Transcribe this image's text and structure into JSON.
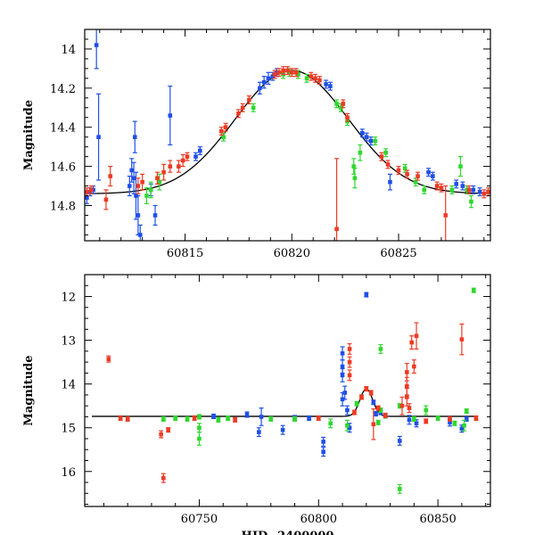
{
  "colors": {
    "blue": "#1f4fe8",
    "green": "#2ed82e",
    "red": "#ec3b25",
    "model": "#000000",
    "frame": "#000000"
  },
  "chart_data": [
    {
      "type": "scatter",
      "panel": "top",
      "title": "",
      "xlabel": "",
      "ylabel": "Magnitude",
      "xlim": [
        60810.3,
        60829.3
      ],
      "ylim": [
        14.98,
        13.9
      ],
      "y_inverted": true,
      "xticks": [
        60815,
        60820,
        60825
      ],
      "xtick_labels": [
        "60815",
        "60820",
        "60825"
      ],
      "yticks": [
        14,
        14.2,
        14.4,
        14.6,
        14.8
      ],
      "ytick_labels": [
        "14",
        "14.2",
        "14.4",
        "14.6",
        "14.8"
      ],
      "model_curve": {
        "t0": 60820.0,
        "base": 14.74,
        "peak": 14.11,
        "tE": 2.65
      },
      "series": [
        {
          "color": "blue",
          "points": [
            [
              60810.4,
              14.76,
              0.03
            ],
            [
              60810.55,
              14.73,
              0.02
            ],
            [
              60810.7,
              14.72,
              0.02
            ],
            [
              60810.85,
              13.98,
              0.12
            ],
            [
              60810.95,
              14.45,
              0.22
            ],
            [
              60812.4,
              14.7,
              0.05
            ],
            [
              60812.5,
              14.62,
              0.06
            ],
            [
              60812.6,
              14.66,
              0.08
            ],
            [
              60812.7,
              14.75,
              0.12
            ],
            [
              60812.8,
              14.85,
              0.1
            ],
            [
              60812.9,
              14.95,
              0.05
            ],
            [
              60812.65,
              14.45,
              0.08
            ],
            [
              60813.4,
              14.72,
              0.03
            ],
            [
              60813.6,
              14.85,
              0.05
            ],
            [
              60814.3,
              14.34,
              0.15
            ],
            [
              60815.5,
              14.55,
              0.02
            ],
            [
              60815.7,
              14.52,
              0.02
            ],
            [
              60818.5,
              14.2,
              0.03
            ],
            [
              60818.7,
              14.17,
              0.03
            ],
            [
              60818.9,
              14.15,
              0.03
            ],
            [
              60819.1,
              14.14,
              0.02
            ],
            [
              60819.3,
              14.12,
              0.02
            ],
            [
              60821.6,
              14.18,
              0.02
            ],
            [
              60821.8,
              14.19,
              0.02
            ],
            [
              60823.3,
              14.43,
              0.02
            ],
            [
              60823.5,
              14.45,
              0.02
            ],
            [
              60823.7,
              14.47,
              0.02
            ],
            [
              60824.6,
              14.68,
              0.04
            ],
            [
              60826.4,
              14.63,
              0.02
            ],
            [
              60826.6,
              14.65,
              0.02
            ],
            [
              60827.7,
              14.69,
              0.02
            ],
            [
              60828.0,
              14.7,
              0.02
            ],
            [
              60828.5,
              14.72,
              0.02
            ],
            [
              60828.8,
              14.73,
              0.02
            ]
          ]
        },
        {
          "color": "green",
          "points": [
            [
              60813.2,
              14.75,
              0.04
            ],
            [
              60813.4,
              14.72,
              0.04
            ],
            [
              60813.8,
              14.68,
              0.04
            ],
            [
              60816.8,
              14.45,
              0.02
            ],
            [
              60818.2,
              14.3,
              0.02
            ],
            [
              60819.6,
              14.13,
              0.02
            ],
            [
              60819.9,
              14.12,
              0.02
            ],
            [
              60820.3,
              14.13,
              0.02
            ],
            [
              60820.7,
              14.15,
              0.02
            ],
            [
              60822.1,
              14.28,
              0.02
            ],
            [
              60822.3,
              14.3,
              0.02
            ],
            [
              60822.6,
              14.37,
              0.02
            ],
            [
              60822.9,
              14.6,
              0.04
            ],
            [
              60822.95,
              14.66,
              0.05
            ],
            [
              60823.2,
              14.53,
              0.04
            ],
            [
              60823.9,
              14.47,
              0.02
            ],
            [
              60824.4,
              14.53,
              0.02
            ],
            [
              60825.3,
              14.61,
              0.02
            ],
            [
              60825.8,
              14.68,
              0.02
            ],
            [
              60826.2,
              14.72,
              0.02
            ],
            [
              60827.5,
              14.72,
              0.02
            ],
            [
              60827.9,
              14.6,
              0.05
            ],
            [
              60828.2,
              14.72,
              0.02
            ],
            [
              60828.4,
              14.78,
              0.03
            ]
          ]
        },
        {
          "color": "red",
          "points": [
            [
              60810.4,
              14.73,
              0.02
            ],
            [
              60810.6,
              14.72,
              0.02
            ],
            [
              60811.3,
              14.77,
              0.05
            ],
            [
              60811.5,
              14.65,
              0.05
            ],
            [
              60812.8,
              14.7,
              0.04
            ],
            [
              60813.0,
              14.68,
              0.04
            ],
            [
              60813.7,
              14.66,
              0.03
            ],
            [
              60814.0,
              14.63,
              0.04
            ],
            [
              60814.3,
              14.6,
              0.03
            ],
            [
              60814.7,
              14.6,
              0.03
            ],
            [
              60814.9,
              14.57,
              0.03
            ],
            [
              60815.1,
              14.55,
              0.02
            ],
            [
              60816.7,
              14.42,
              0.02
            ],
            [
              60816.9,
              14.4,
              0.02
            ],
            [
              60817.5,
              14.33,
              0.02
            ],
            [
              60817.7,
              14.3,
              0.02
            ],
            [
              60818.0,
              14.26,
              0.02
            ],
            [
              60819.2,
              14.13,
              0.02
            ],
            [
              60819.4,
              14.12,
              0.02
            ],
            [
              60819.6,
              14.11,
              0.02
            ],
            [
              60819.8,
              14.11,
              0.02
            ],
            [
              60820.0,
              14.12,
              0.02
            ],
            [
              60820.2,
              14.12,
              0.02
            ],
            [
              60820.9,
              14.14,
              0.02
            ],
            [
              60821.1,
              14.15,
              0.02
            ],
            [
              60821.3,
              14.16,
              0.02
            ],
            [
              60822.4,
              14.28,
              0.02
            ],
            [
              60822.6,
              14.35,
              0.02
            ],
            [
              60822.1,
              14.92,
              0.36
            ],
            [
              60824.2,
              14.55,
              0.02
            ],
            [
              60824.5,
              14.59,
              0.02
            ],
            [
              60825.0,
              14.62,
              0.02
            ],
            [
              60825.4,
              14.64,
              0.02
            ],
            [
              60825.9,
              14.65,
              0.02
            ],
            [
              60826.8,
              14.7,
              0.02
            ],
            [
              60827.0,
              14.71,
              0.02
            ],
            [
              60827.2,
              14.85,
              0.15
            ],
            [
              60828.3,
              14.72,
              0.02
            ],
            [
              60829.0,
              14.74,
              0.02
            ],
            [
              60829.2,
              14.73,
              0.02
            ]
          ]
        }
      ]
    },
    {
      "type": "scatter",
      "panel": "bottom",
      "title": "",
      "xlabel": "HJD−2400000",
      "ylabel": "Magnitude",
      "xlim": [
        60702,
        60872
      ],
      "ylim": [
        16.8,
        11.5
      ],
      "y_inverted": true,
      "xticks": [
        60750,
        60800,
        60850
      ],
      "xtick_labels": [
        "60750",
        "60800",
        "60850"
      ],
      "yticks": [
        12,
        13,
        14,
        15,
        16
      ],
      "ytick_labels": [
        "12",
        "13",
        "14",
        "15",
        "16"
      ],
      "baseline": {
        "x_start": 60705,
        "x_end": 60866,
        "mag": 14.74
      },
      "model_curve": {
        "t0": 60820.0,
        "base": 14.74,
        "peak": 14.11,
        "tE": 2.65
      },
      "series": [
        {
          "color": "blue",
          "points": [
            [
              60756,
              14.74,
              0.05
            ],
            [
              60770,
              14.7,
              0.06
            ],
            [
              60775,
              15.1,
              0.1
            ],
            [
              60776,
              14.75,
              0.2
            ],
            [
              60785,
              15.05,
              0.1
            ],
            [
              60790,
              14.77,
              0.05
            ],
            [
              60796,
              14.78,
              0.05
            ],
            [
              60802,
              15.32,
              0.1
            ],
            [
              60802,
              15.55,
              0.1
            ],
            [
              60810,
              13.3,
              0.15
            ],
            [
              60810,
              13.6,
              0.15
            ],
            [
              60810,
              13.8,
              0.15
            ],
            [
              60810,
              14.35,
              0.15
            ],
            [
              60811,
              14.2,
              0.15
            ],
            [
              60812,
              14.6,
              0.1
            ],
            [
              60813,
              15.0,
              0.1
            ],
            [
              60820,
              11.96,
              0.05
            ],
            [
              60823,
              14.42,
              0.05
            ],
            [
              60824,
              14.68,
              0.05
            ],
            [
              60826,
              14.65,
              0.05
            ],
            [
              60834,
              15.3,
              0.1
            ],
            [
              60838,
              14.82,
              0.1
            ],
            [
              60841,
              14.9,
              0.08
            ],
            [
              60855,
              14.88,
              0.08
            ],
            [
              60860,
              15.02,
              0.08
            ],
            [
              60862,
              14.8,
              0.05
            ]
          ]
        },
        {
          "color": "green",
          "points": [
            [
              60735,
              14.8,
              0.05
            ],
            [
              60740,
              14.78,
              0.05
            ],
            [
              60745,
              14.8,
              0.05
            ],
            [
              60750,
              15.25,
              0.15
            ],
            [
              60750,
              15.0,
              0.1
            ],
            [
              60750,
              14.75,
              0.05
            ],
            [
              60758,
              14.82,
              0.05
            ],
            [
              60762,
              14.78,
              0.05
            ],
            [
              60780,
              14.8,
              0.05
            ],
            [
              60790,
              14.8,
              0.05
            ],
            [
              60805,
              14.9,
              0.1
            ],
            [
              60812,
              14.95,
              0.12
            ],
            [
              60816,
              14.45,
              0.05
            ],
            [
              60818,
              14.3,
              0.05
            ],
            [
              60825,
              14.88,
              0.05
            ],
            [
              60826,
              13.2,
              0.1
            ],
            [
              60826,
              14.6,
              0.05
            ],
            [
              60828,
              14.73,
              0.05
            ],
            [
              60834,
              14.5,
              0.05
            ],
            [
              60834,
              16.4,
              0.1
            ],
            [
              60840,
              14.8,
              0.05
            ],
            [
              60845,
              14.6,
              0.1
            ],
            [
              60850,
              14.78,
              0.05
            ],
            [
              60857,
              14.9,
              0.05
            ],
            [
              60861,
              14.95,
              0.12
            ],
            [
              60862,
              14.62,
              0.05
            ],
            [
              60865,
              11.86,
              0.05
            ]
          ]
        },
        {
          "color": "red",
          "points": [
            [
              60712,
              13.43,
              0.07
            ],
            [
              60717,
              14.78,
              0.05
            ],
            [
              60720,
              14.8,
              0.05
            ],
            [
              60734,
              15.15,
              0.08
            ],
            [
              60735,
              16.15,
              0.1
            ],
            [
              60737,
              15.05,
              0.05
            ],
            [
              60748,
              14.78,
              0.05
            ],
            [
              60765,
              14.82,
              0.05
            ],
            [
              60800,
              14.78,
              0.05
            ],
            [
              60813,
              13.2,
              0.12
            ],
            [
              60813,
              13.5,
              0.12
            ],
            [
              60813,
              13.8,
              0.12
            ],
            [
              60815,
              14.65,
              0.05
            ],
            [
              60818,
              14.3,
              0.05
            ],
            [
              60820,
              14.11,
              0.05
            ],
            [
              60822,
              14.2,
              0.05
            ],
            [
              60823,
              14.92,
              0.35
            ],
            [
              60825,
              14.55,
              0.05
            ],
            [
              60828,
              14.72,
              0.05
            ],
            [
              60835,
              14.5,
              0.2
            ],
            [
              60837,
              13.73,
              0.2
            ],
            [
              60837,
              14.05,
              0.2
            ],
            [
              60837,
              14.3,
              0.2
            ],
            [
              60838,
              14.55,
              0.1
            ],
            [
              60839,
              13.05,
              0.15
            ],
            [
              60840,
              13.6,
              0.15
            ],
            [
              60841,
              12.9,
              0.3
            ],
            [
              60845,
              14.85,
              0.05
            ],
            [
              60855,
              14.8,
              0.05
            ],
            [
              60860,
              12.98,
              0.35
            ],
            [
              60866,
              14.78,
              0.05
            ]
          ]
        }
      ]
    }
  ]
}
